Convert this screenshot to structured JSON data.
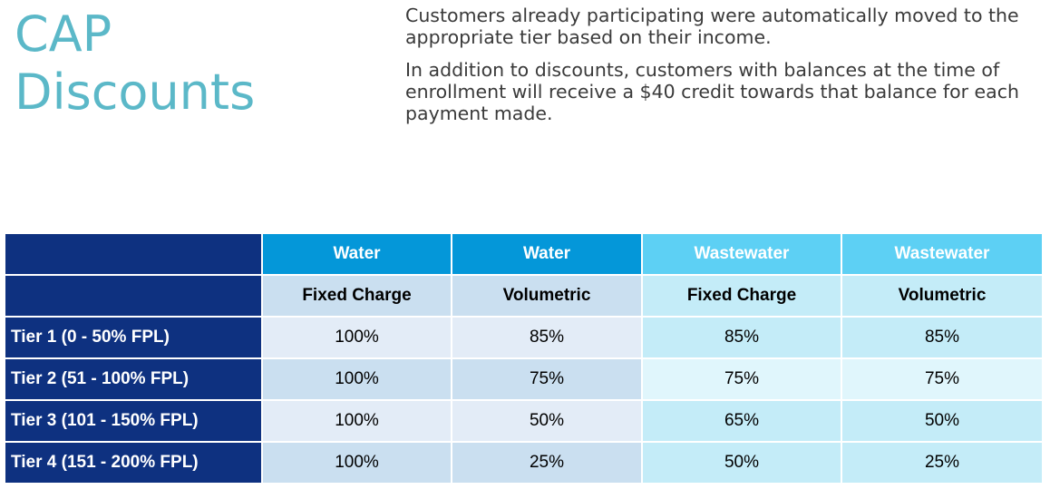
{
  "title": {
    "line1": "CAP",
    "line2": "Discounts"
  },
  "body": {
    "paragraph1": "Customers already participating were automatically moved to the appropriate tier based on their income.",
    "paragraph2": "In addition to discounts, customers with balances at the time of enrollment will receive a $40 credit towards that balance for each payment made."
  },
  "table": {
    "header_row": [
      "",
      "Water",
      "Water",
      "Wastewater",
      "Wastewater"
    ],
    "sub_header_row": [
      "",
      "Fixed Charge",
      "Volumetric",
      "Fixed Charge",
      "Volumetric"
    ],
    "rows": [
      {
        "label": "Tier 1 (0 - 50% FPL)",
        "values": [
          "100%",
          "85%",
          "85%",
          "85%"
        ]
      },
      {
        "label": "Tier 2 (51 - 100% FPL)",
        "values": [
          "100%",
          "75%",
          "75%",
          "75%"
        ]
      },
      {
        "label": "Tier 3 (101 - 150% FPL)",
        "values": [
          "100%",
          "50%",
          "65%",
          "50%"
        ]
      },
      {
        "label": "Tier 4 (151 - 200% FPL)",
        "values": [
          "100%",
          "25%",
          "50%",
          "25%"
        ]
      }
    ]
  },
  "colors": {
    "title": "#5bb8c8",
    "tier_label_bg": "#0e3180",
    "water_header_bg": "#0497d9",
    "wastewater_header_bg": "#5dd0f4"
  }
}
